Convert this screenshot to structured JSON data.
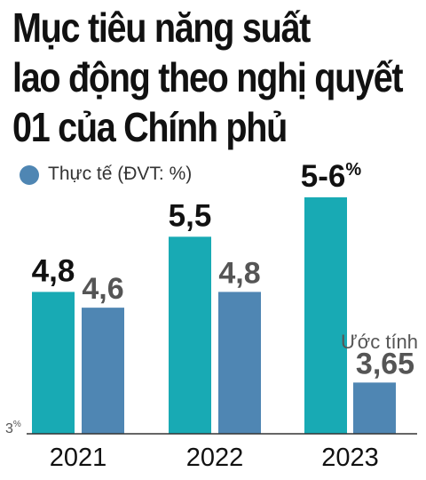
{
  "title_lines": [
    "Mục tiêu năng suất",
    "lao động theo nghị quyết",
    "01 của Chính phủ"
  ],
  "legend": {
    "label": "Thực tế (ĐVT: %)"
  },
  "annotation": "Ước tính",
  "colors": {
    "target": "#18aab4",
    "actual": "#4f86b3",
    "axis": "#333333",
    "text_dark": "#111111",
    "text_grey": "#555555"
  },
  "chart_data": {
    "type": "bar",
    "categories": [
      "2021",
      "2022",
      "2023"
    ],
    "series": [
      {
        "values": [
          4.8,
          5.5,
          6
        ],
        "labels": [
          "4,8",
          "5,5",
          "5-6%"
        ]
      },
      {
        "name": "Thực tế (ĐVT: %)",
        "values": [
          4.6,
          4.8,
          3.65
        ],
        "labels": [
          "4,6",
          "4,8",
          "3,65"
        ]
      }
    ],
    "ylim": [
      3,
      6
    ],
    "baseline_label": "3%",
    "xlabel": "",
    "ylabel": ""
  }
}
